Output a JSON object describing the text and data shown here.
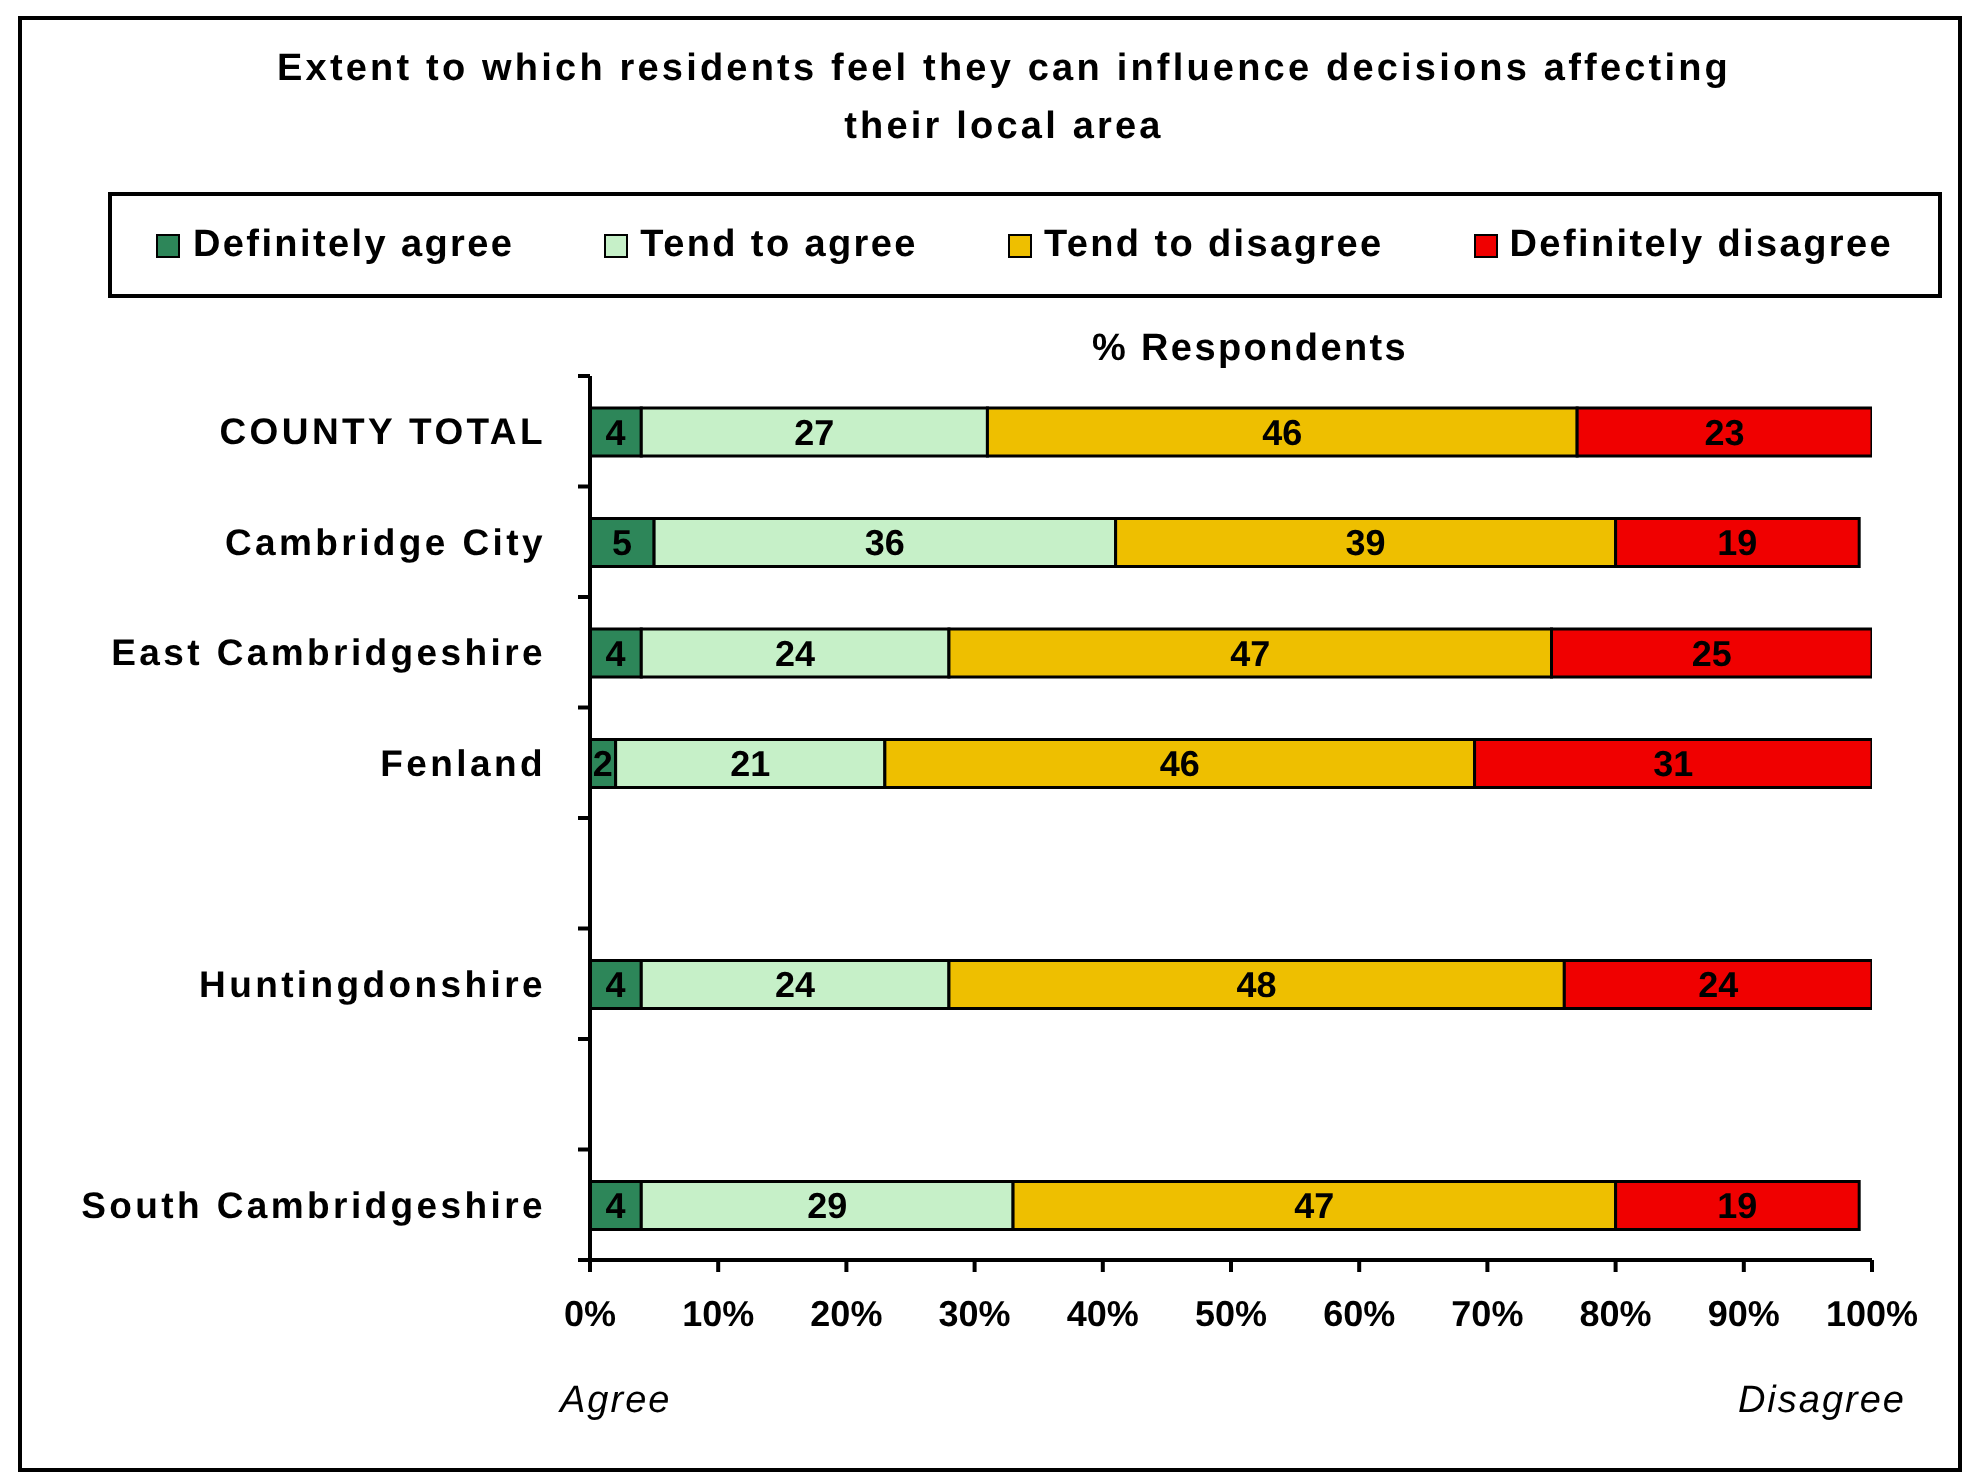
{
  "chart_data": {
    "type": "bar",
    "orientation": "horizontal",
    "stacked": true,
    "title": "Extent to which residents feel they can influence decisions affecting their local area",
    "xlabel": "% Respondents",
    "categories": [
      "COUNTY TOTAL",
      "Cambridge City",
      "East Cambridgeshire",
      "Fenland",
      null,
      "Huntingdonshire",
      null,
      "South Cambridgeshire"
    ],
    "series": [
      {
        "name": "Definitely agree",
        "color": "#2d8659",
        "values": [
          4,
          5,
          4,
          2,
          null,
          4,
          null,
          4
        ]
      },
      {
        "name": "Tend to agree",
        "color": "#c6f0c8",
        "values": [
          27,
          36,
          24,
          21,
          null,
          24,
          null,
          29
        ]
      },
      {
        "name": "Tend to disagree",
        "color": "#eebf00",
        "values": [
          46,
          39,
          47,
          46,
          null,
          48,
          null,
          47
        ]
      },
      {
        "name": "Definitely disagree",
        "color": "#f00000",
        "values": [
          23,
          19,
          25,
          31,
          null,
          24,
          null,
          19
        ]
      }
    ],
    "xlim": [
      0,
      100
    ],
    "xticks": [
      {
        "value": 0,
        "label": "0%"
      },
      {
        "value": 10,
        "label": "10%"
      },
      {
        "value": 20,
        "label": "20%"
      },
      {
        "value": 30,
        "label": "30%"
      },
      {
        "value": 40,
        "label": "40%"
      },
      {
        "value": 50,
        "label": "50%"
      },
      {
        "value": 60,
        "label": "60%"
      },
      {
        "value": 70,
        "label": "70%"
      },
      {
        "value": 80,
        "label": "80%"
      },
      {
        "value": 90,
        "label": "90%"
      },
      {
        "value": 100,
        "label": "100%"
      }
    ],
    "data_labels": true,
    "legend": "top",
    "annotations": [
      "Agree",
      "Disagree"
    ]
  }
}
